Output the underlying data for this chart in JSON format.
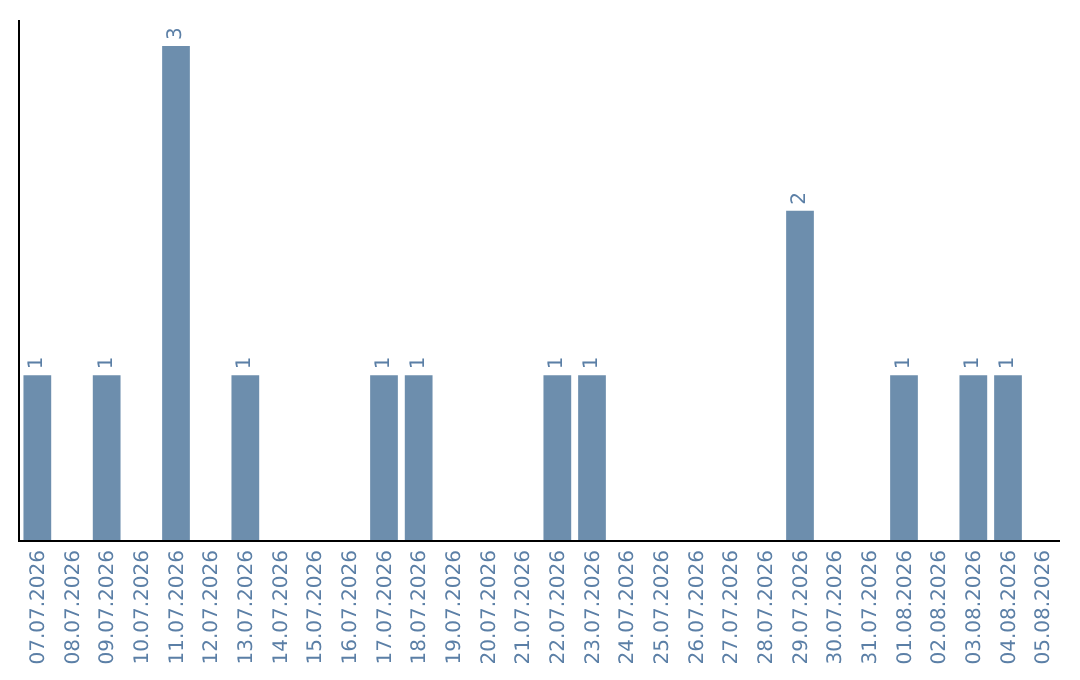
{
  "chart_data": {
    "type": "bar",
    "categories": [
      "07.07.2026",
      "08.07.2026",
      "09.07.2026",
      "10.07.2026",
      "11.07.2026",
      "12.07.2026",
      "13.07.2026",
      "14.07.2026",
      "15.07.2026",
      "16.07.2026",
      "17.07.2026",
      "18.07.2026",
      "19.07.2026",
      "20.07.2026",
      "21.07.2026",
      "22.07.2026",
      "23.07.2026",
      "24.07.2026",
      "25.07.2026",
      "26.07.2026",
      "27.07.2026",
      "28.07.2026",
      "29.07.2026",
      "30.07.2026",
      "31.07.2026",
      "01.08.2026",
      "02.08.2026",
      "03.08.2026",
      "04.08.2026",
      "05.08.2026"
    ],
    "values": [
      1,
      0,
      1,
      0,
      3,
      0,
      1,
      0,
      0,
      0,
      1,
      1,
      0,
      0,
      0,
      1,
      1,
      0,
      0,
      0,
      0,
      0,
      2,
      0,
      0,
      1,
      0,
      1,
      1,
      0
    ],
    "value_labels": [
      "1",
      null,
      "1",
      null,
      "3",
      null,
      "1",
      null,
      null,
      null,
      "1",
      "1",
      null,
      null,
      null,
      "1",
      "1",
      null,
      null,
      null,
      null,
      null,
      "2",
      null,
      null,
      "1",
      null,
      "1",
      "1",
      null
    ],
    "color": "#6d8ead",
    "tick_labels": "x"
  }
}
